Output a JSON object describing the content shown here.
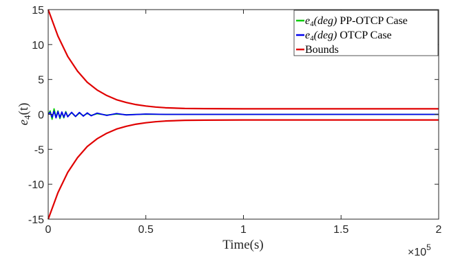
{
  "chart_data": {
    "type": "line",
    "xlabel": "Time(s)",
    "ylabel": "e_4(t)",
    "ylabel_base": "e",
    "ylabel_sub": "4",
    "ylabel_arg": "(t)",
    "x_multiplier": "×10",
    "x_multiplier_exp": "5",
    "xlim": [
      0,
      200000
    ],
    "ylim": [
      -15,
      15
    ],
    "x_ticks": [
      0,
      50000,
      100000,
      150000,
      200000
    ],
    "x_tick_labels": [
      "0",
      "0.5",
      "1",
      "1.5",
      "2"
    ],
    "y_ticks": [
      -15,
      -10,
      -5,
      0,
      5,
      10,
      15
    ],
    "y_tick_labels": [
      "-15",
      "-10",
      "-5",
      "0",
      "5",
      "10",
      "15"
    ],
    "grid": false,
    "legend_position": "top-right",
    "series": [
      {
        "name": "e_4(deg) PP-OTCP Case",
        "legend_base": "e",
        "legend_sub": "4",
        "legend_math": "(deg)",
        "legend_rest": " PP-OTCP Case",
        "color": "#00cc00",
        "x": [
          0,
          1000,
          2000,
          3000,
          4000,
          5000,
          6000,
          7000,
          8000,
          9000,
          10000,
          12000,
          14000,
          16000,
          18000,
          20000,
          22000,
          25000,
          30000,
          35000,
          40000,
          50000,
          60000,
          80000,
          100000,
          150000,
          200000
        ],
        "y": [
          0.0,
          0.5,
          -0.7,
          0.8,
          -0.4,
          0.5,
          -0.6,
          0.3,
          -0.5,
          0.4,
          -0.3,
          0.25,
          -0.3,
          0.2,
          -0.2,
          0.15,
          -0.15,
          0.1,
          -0.1,
          0.05,
          -0.05,
          0.03,
          0.0,
          0.0,
          0.0,
          0.0,
          0.0
        ]
      },
      {
        "name": "e_4(deg) OTCP Case",
        "legend_base": "e",
        "legend_sub": "4",
        "legend_math": "(deg)",
        "legend_rest": " OTCP Case",
        "color": "#0000ee",
        "x": [
          0,
          1000,
          2000,
          3000,
          4000,
          5000,
          6000,
          7000,
          8000,
          9000,
          10000,
          12000,
          14000,
          16000,
          18000,
          20000,
          22000,
          25000,
          30000,
          35000,
          40000,
          50000,
          60000,
          80000,
          100000,
          150000,
          200000
        ],
        "y": [
          0.0,
          0.3,
          -0.4,
          0.45,
          -0.5,
          0.4,
          -0.45,
          0.35,
          -0.4,
          0.3,
          -0.35,
          0.3,
          -0.3,
          0.28,
          -0.25,
          0.22,
          -0.2,
          0.18,
          -0.15,
          0.12,
          -0.08,
          0.05,
          0.0,
          0.0,
          0.0,
          0.0,
          0.0
        ]
      },
      {
        "name": "Bounds",
        "legend_rest": "Bounds",
        "color": "#e00000",
        "x": [
          0,
          5000,
          10000,
          15000,
          20000,
          25000,
          30000,
          35000,
          40000,
          45000,
          50000,
          55000,
          60000,
          70000,
          80000,
          100000,
          150000,
          200000
        ],
        "y_upper": [
          15.0,
          11.2,
          8.3,
          6.2,
          4.6,
          3.5,
          2.7,
          2.1,
          1.7,
          1.4,
          1.2,
          1.05,
          0.95,
          0.85,
          0.82,
          0.8,
          0.8,
          0.8
        ],
        "y_lower": [
          -15.0,
          -11.2,
          -8.3,
          -6.2,
          -4.6,
          -3.5,
          -2.7,
          -2.1,
          -1.7,
          -1.4,
          -1.2,
          -1.05,
          -0.95,
          -0.85,
          -0.82,
          -0.8,
          -0.8,
          -0.8
        ]
      }
    ]
  }
}
